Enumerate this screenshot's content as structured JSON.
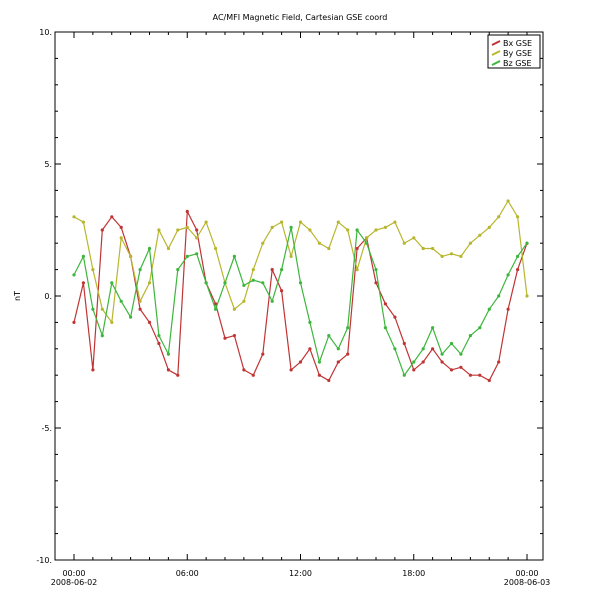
{
  "chart_data": {
    "type": "line",
    "title": "AC/MFI  Magnetic Field, Cartesian GSE coord",
    "ylabel": "nT",
    "xlabel": "",
    "ylim": [
      -10,
      10
    ],
    "yticks": [
      -10,
      -5,
      0,
      5,
      10
    ],
    "ytick_labels": [
      "-10.",
      "-5.",
      "0.",
      "5.",
      "10."
    ],
    "xlim_hours": [
      0,
      24
    ],
    "xticks_hours": [
      0,
      6,
      12,
      18,
      24
    ],
    "xtick_labels": [
      {
        "time": "00:00",
        "date": "2008-06-02"
      },
      {
        "time": "06:00",
        "date": ""
      },
      {
        "time": "12:00",
        "date": ""
      },
      {
        "time": "18:00",
        "date": ""
      },
      {
        "time": "00:00",
        "date": "2008-06-03"
      }
    ],
    "grid": false,
    "legend_position": "top-right",
    "x_hours": [
      0.0,
      0.5,
      1.0,
      1.5,
      2.0,
      2.5,
      3.0,
      3.5,
      4.0,
      4.5,
      5.0,
      5.5,
      6.0,
      6.5,
      7.0,
      7.5,
      8.0,
      8.5,
      9.0,
      9.5,
      10.0,
      10.5,
      11.0,
      11.5,
      12.0,
      12.5,
      13.0,
      13.5,
      14.0,
      14.5,
      15.0,
      15.5,
      16.0,
      16.5,
      17.0,
      17.5,
      18.0,
      18.5,
      19.0,
      19.5,
      20.0,
      20.5,
      21.0,
      21.5,
      22.0,
      22.5,
      23.0,
      23.5,
      24.0
    ],
    "series": [
      {
        "name": "Bx GSE",
        "color": "#c03434",
        "values": [
          -1.0,
          0.5,
          -2.8,
          2.5,
          3.0,
          2.6,
          1.5,
          -0.5,
          -1.0,
          -1.8,
          -2.8,
          -3.0,
          3.2,
          2.5,
          0.5,
          -0.3,
          -1.6,
          -1.5,
          -2.8,
          -3.0,
          -2.2,
          1.0,
          0.2,
          -2.8,
          -2.5,
          -2.0,
          -3.0,
          -3.2,
          -2.5,
          -2.2,
          1.8,
          2.2,
          0.5,
          -0.3,
          -0.8,
          -1.8,
          -2.8,
          -2.5,
          -2.0,
          -2.5,
          -2.8,
          -2.7,
          -3.0,
          -3.0,
          -3.2,
          -2.5,
          -0.5,
          1.0,
          2.0
        ]
      },
      {
        "name": "By GSE",
        "color": "#b8b62e",
        "values": [
          3.0,
          2.8,
          1.0,
          -0.5,
          -1.0,
          2.2,
          1.5,
          -0.2,
          0.5,
          2.5,
          1.8,
          2.5,
          2.6,
          2.2,
          2.8,
          1.8,
          0.5,
          -0.5,
          -0.2,
          1.0,
          2.0,
          2.6,
          2.8,
          1.5,
          2.8,
          2.5,
          2.0,
          1.8,
          2.8,
          2.5,
          1.0,
          2.2,
          2.5,
          2.6,
          2.8,
          2.0,
          2.2,
          1.8,
          1.8,
          1.5,
          1.6,
          1.5,
          2.0,
          2.3,
          2.6,
          3.0,
          3.6,
          3.0,
          0.0
        ]
      },
      {
        "name": "Bz GSE",
        "color": "#3cb63c",
        "values": [
          0.8,
          1.5,
          -0.5,
          -1.5,
          0.5,
          -0.2,
          -0.8,
          1.0,
          1.8,
          -1.5,
          -2.2,
          1.0,
          1.5,
          1.6,
          0.5,
          -0.5,
          0.5,
          1.5,
          0.4,
          0.6,
          0.5,
          -0.2,
          1.0,
          2.6,
          0.5,
          -1.0,
          -2.5,
          -1.5,
          -2.0,
          -1.2,
          2.5,
          2.0,
          1.0,
          -1.2,
          -2.0,
          -3.0,
          -2.5,
          -2.0,
          -1.2,
          -2.2,
          -1.8,
          -2.2,
          -1.5,
          -1.2,
          -0.5,
          0.0,
          0.8,
          1.5,
          2.0
        ]
      }
    ]
  }
}
